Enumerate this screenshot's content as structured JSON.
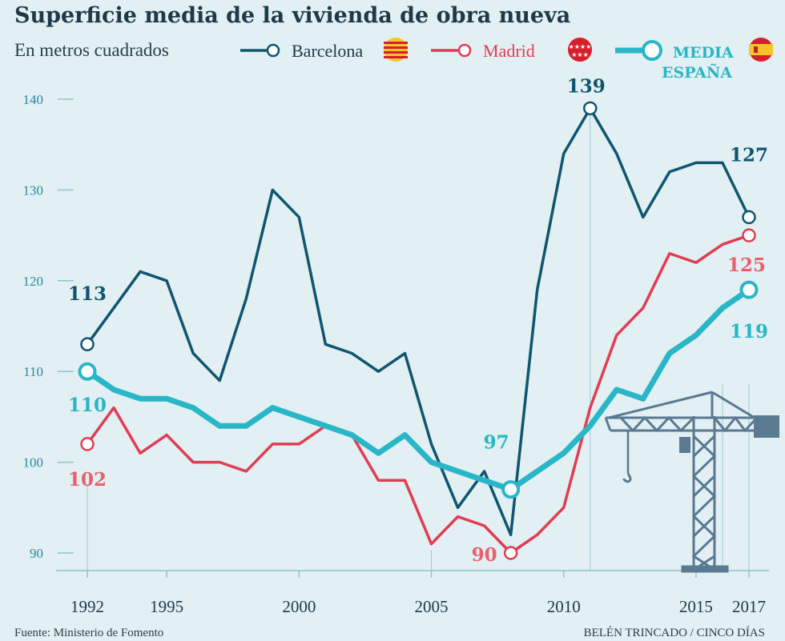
{
  "chart_data": {
    "type": "line",
    "title": "Superficie media de la vivienda de obra nueva",
    "subtitle": "En metros cuadrados",
    "x": [
      1992,
      1993,
      1994,
      1995,
      1996,
      1997,
      1998,
      1999,
      2000,
      2001,
      2002,
      2003,
      2004,
      2005,
      2006,
      2007,
      2008,
      2009,
      2010,
      2011,
      2012,
      2013,
      2014,
      2015,
      2016,
      2017
    ],
    "xticks": [
      "1992",
      "1995",
      "2000",
      "2005",
      "2010",
      "2015",
      "2017"
    ],
    "yticks": [
      "90",
      "100",
      "110",
      "120",
      "130",
      "140"
    ],
    "ylim": [
      87,
      145
    ],
    "series": [
      {
        "name": "Barcelona",
        "color": "#0f5670",
        "values": [
          113,
          117,
          121,
          120,
          112,
          109,
          118,
          130,
          127,
          113,
          112,
          110,
          112,
          102,
          95,
          99,
          92,
          119,
          134,
          139,
          134,
          127,
          132,
          133,
          133,
          127
        ]
      },
      {
        "name": "Madrid",
        "color": "#e03d52",
        "values": [
          102,
          106,
          101,
          103,
          100,
          100,
          99,
          102,
          102,
          104,
          103,
          98,
          98,
          91,
          94,
          93,
          90,
          92,
          95,
          106,
          114,
          117,
          123,
          122,
          124,
          125
        ]
      },
      {
        "name": "MEDIA ESPAÑA",
        "color": "#29b6c6",
        "values": [
          110,
          108,
          107,
          107,
          106,
          104,
          104,
          106,
          105,
          104,
          103,
          101,
          103,
          100,
          99,
          98,
          97,
          99,
          101,
          104,
          108,
          107,
          112,
          114,
          117,
          119
        ]
      }
    ],
    "data_labels": [
      {
        "series": "Barcelona",
        "year": 1992,
        "text": "113"
      },
      {
        "series": "Barcelona",
        "year": 2011,
        "text": "139"
      },
      {
        "series": "Barcelona",
        "year": 2017,
        "text": "127"
      },
      {
        "series": "Madrid",
        "year": 1992,
        "text": "102"
      },
      {
        "series": "Madrid",
        "year": 2008,
        "text": "90"
      },
      {
        "series": "Madrid",
        "year": 2017,
        "text": "125"
      },
      {
        "series": "MEDIA ESPAÑA",
        "year": 1992,
        "text": "110"
      },
      {
        "series": "MEDIA ESPAÑA",
        "year": 2008,
        "text": "97"
      },
      {
        "series": "MEDIA ESPAÑA",
        "year": 2017,
        "text": "119"
      }
    ],
    "legend": [
      {
        "label": "Barcelona",
        "flag": "catalonia-flag-icon"
      },
      {
        "label": "Madrid",
        "flag": "madrid-flag-icon"
      },
      {
        "label_line1": "MEDIA",
        "label_line2": "ESPAÑA",
        "flag": "spain-flag-icon"
      }
    ],
    "decoration": "construction-crane-icon"
  },
  "footer": {
    "source": "Fuente: Ministerio de Fomento",
    "credit": "BELÉN TRINCADO / CINCO DÍAS"
  }
}
